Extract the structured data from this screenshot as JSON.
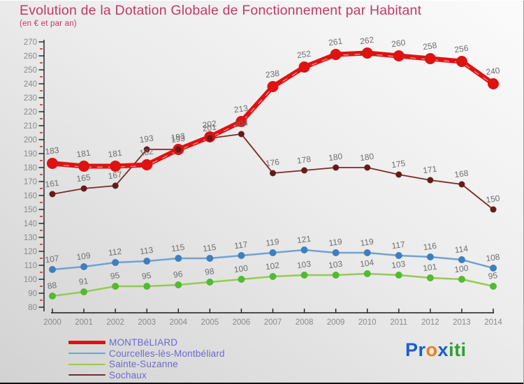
{
  "header": {
    "title": "Evolution de la Dotation Globale de Fonctionnement par Habitant",
    "subtitle": "(en € et par an)"
  },
  "chart_data": {
    "type": "line",
    "title": "Evolution de la Dotation Globale de Fonctionnement par Habitant",
    "subtitle": "(en € et par an)",
    "x": [
      2000,
      2001,
      2002,
      2003,
      2004,
      2005,
      2006,
      2007,
      2008,
      2009,
      2010,
      2011,
      2012,
      2013,
      2014
    ],
    "ylim": [
      80,
      270
    ],
    "ytick_step": 10,
    "grid": false,
    "legend_position": "bottom-left",
    "axis_label_color": "#8a8a8a",
    "point_label_color": "#6f6f6f",
    "series": [
      {
        "name": "MONTBéLIARD",
        "color": "#e01111",
        "dot_color": "#e01111",
        "thickness": 7,
        "dot_radius": 8,
        "label_offset": 14,
        "values": [
          183,
          181,
          181,
          182,
          193,
          202,
          213,
          238,
          252,
          261,
          262,
          260,
          258,
          256,
          240
        ]
      },
      {
        "name": "Courcelles-lès-Montbéliard",
        "color": "#6fa3d3",
        "dot_color": "#3d7fbf",
        "thickness": 2.5,
        "dot_radius": 5,
        "label_offset": 11,
        "values": [
          107,
          109,
          112,
          113,
          115,
          115,
          117,
          119,
          121,
          119,
          119,
          117,
          116,
          114,
          108
        ]
      },
      {
        "name": "Sainte-Suzanne",
        "color": "#96ca53",
        "dot_color": "#52ba33",
        "thickness": 2.5,
        "dot_radius": 5,
        "label_offset": 11,
        "values": [
          88,
          91,
          95,
          95,
          96,
          98,
          100,
          102,
          103,
          103,
          104,
          103,
          101,
          100,
          95
        ]
      },
      {
        "name": "Sochaux",
        "color": "#7b2b26",
        "dot_color": "#661b1b",
        "thickness": 1.8,
        "dot_radius": 4.5,
        "label_offset": 11,
        "values": [
          161,
          165,
          167,
          193,
          193,
          201,
          204,
          176,
          178,
          180,
          180,
          175,
          171,
          168,
          150
        ]
      }
    ]
  },
  "logo": {
    "parts": [
      {
        "text": "Pr",
        "color": "#1a5fc8"
      },
      {
        "text": "o",
        "color": "#f08019"
      },
      {
        "text": "x",
        "color": "#1a5fc8"
      },
      {
        "text": "iti",
        "color": "#2ea02e"
      }
    ]
  }
}
